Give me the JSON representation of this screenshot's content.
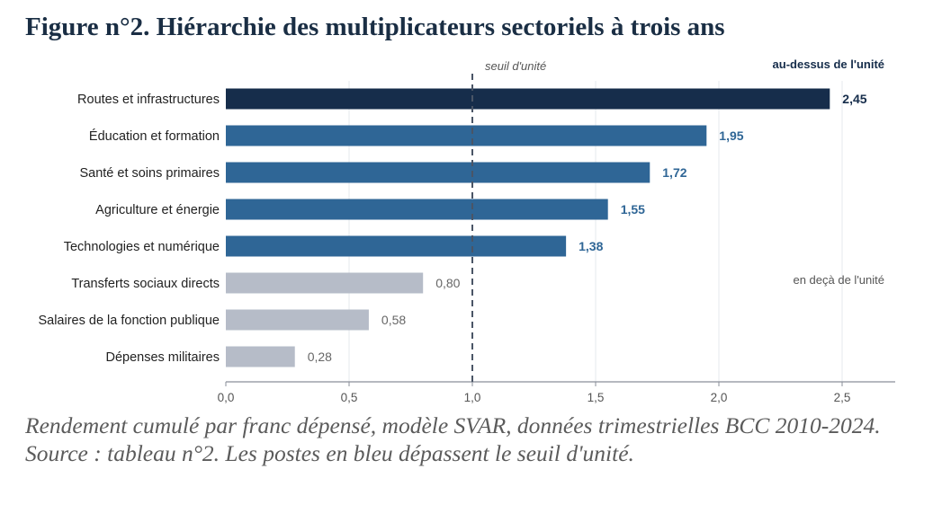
{
  "header": {
    "title": "Figure n°2. Hiérarchie des multiplicateurs sectoriels à trois ans"
  },
  "caption": "Rendement cumulé par franc dépensé, modèle SVAR, données trimestrielles BCC 2010-2024. Source : tableau n°2. Les postes en bleu dépassent le seuil d'unité.",
  "colors": {
    "top": "#162d4b",
    "above": "#2f6696",
    "below": "#b6bcc8",
    "above_label": "#2f6696",
    "below_label": "#666666",
    "threshold": "#4a5566"
  },
  "chart_data": {
    "type": "bar",
    "orientation": "horizontal",
    "categories": [
      "Routes et infrastructures",
      "Éducation et formation",
      "Santé et soins primaires",
      "Agriculture et énergie",
      "Technologies et numérique",
      "Transferts sociaux directs",
      "Salaires de la fonction publique",
      "Dépenses militaires"
    ],
    "values": [
      2.45,
      1.95,
      1.72,
      1.55,
      1.38,
      0.8,
      0.58,
      0.28
    ],
    "value_labels": [
      "2,45",
      "1,95",
      "1,72",
      "1,55",
      "1,38",
      "0,80",
      "0,58",
      "0,28"
    ],
    "xlim": [
      0,
      2.75
    ],
    "x_ticks": [
      0,
      0.5,
      1.0,
      1.5,
      2.0,
      2.5
    ],
    "x_tick_labels": [
      "0,0",
      "0,5",
      "1,0",
      "1,5",
      "2,0",
      "2,5"
    ],
    "threshold": 1.0,
    "threshold_label": "seuil d'unité",
    "group_labels": {
      "above": "au-dessus de l'unité",
      "below": "en deçà de l'unité"
    },
    "grid": "vertical"
  }
}
